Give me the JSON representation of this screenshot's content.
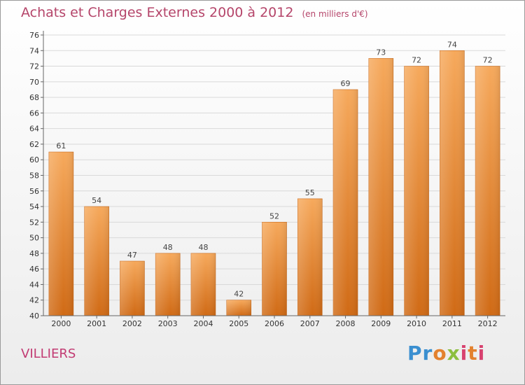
{
  "header": {
    "title": "Achats et Charges Externes 2000 à 2012",
    "subtitle": "(en milliers d'€)"
  },
  "footer": {
    "city": "VILLIERS",
    "logo_text": "Proxiti"
  },
  "colors": {
    "bar_top": "#f5a85a",
    "bar_bottom": "#d06a15",
    "title": "#b5456a",
    "city": "#c23b73"
  },
  "chart_data": {
    "type": "bar",
    "title": "Achats et Charges Externes 2000 à 2012",
    "subtitle": "(en milliers d'€)",
    "categories": [
      "2000",
      "2001",
      "2002",
      "2003",
      "2004",
      "2005",
      "2006",
      "2007",
      "2008",
      "2009",
      "2010",
      "2011",
      "2012"
    ],
    "values": [
      61,
      54,
      47,
      48,
      48,
      42,
      52,
      55,
      69,
      73,
      72,
      74,
      72
    ],
    "ylim": [
      40,
      76
    ],
    "yticks": [
      40,
      42,
      44,
      46,
      48,
      50,
      52,
      54,
      56,
      58,
      60,
      62,
      64,
      66,
      68,
      70,
      72,
      74,
      76
    ],
    "grid": true,
    "xlabel": "",
    "ylabel": ""
  }
}
